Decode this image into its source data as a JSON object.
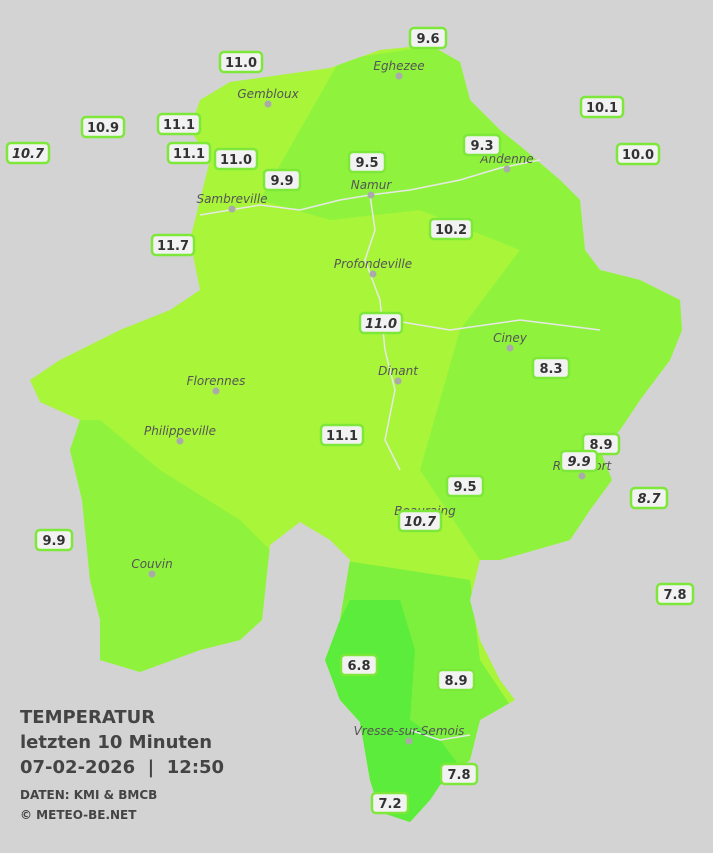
{
  "legend": {
    "title": "TEMPERATUR",
    "subtitle": "letzten 10 Minuten",
    "timestamp": "07-02-2026  |  12:50",
    "source": "DATEN: KMI & BMCB",
    "copyright": "© METEO-BE.NET"
  },
  "towns": [
    "Eghezee",
    "Gembloux",
    "Andenne",
    "Sambreville",
    "Namur",
    "Profondeville",
    "Ciney",
    "Florennes",
    "Dinant",
    "Philippeville",
    "Rochefort",
    "Beauraing",
    "Couvin",
    "Vresse-sur-Semois"
  ],
  "stations": [
    {
      "label": "9.6",
      "italic": false
    },
    {
      "label": "11.0",
      "italic": false
    },
    {
      "label": "10.1",
      "italic": false
    },
    {
      "label": "10.9",
      "italic": false
    },
    {
      "label": "11.1",
      "italic": false
    },
    {
      "label": "10.7",
      "italic": true
    },
    {
      "label": "11.1",
      "italic": false
    },
    {
      "label": "11.0",
      "italic": false
    },
    {
      "label": "9.3",
      "italic": false
    },
    {
      "label": "10.0",
      "italic": false
    },
    {
      "label": "9.5",
      "italic": false
    },
    {
      "label": "9.9",
      "italic": false
    },
    {
      "label": "10.2",
      "italic": false
    },
    {
      "label": "11.7",
      "italic": false
    },
    {
      "label": "11.0",
      "italic": true
    },
    {
      "label": "8.3",
      "italic": false
    },
    {
      "label": "11.1",
      "italic": false
    },
    {
      "label": "8.9",
      "italic": false
    },
    {
      "label": "9.9",
      "italic": true
    },
    {
      "label": "9.5",
      "italic": false
    },
    {
      "label": "8.7",
      "italic": true
    },
    {
      "label": "10.7",
      "italic": true
    },
    {
      "label": "9.9",
      "italic": false
    },
    {
      "label": "7.8",
      "italic": false
    },
    {
      "label": "6.8",
      "italic": false
    },
    {
      "label": "8.9",
      "italic": false
    },
    {
      "label": "7.8",
      "italic": false
    },
    {
      "label": "7.2",
      "italic": false
    }
  ]
}
